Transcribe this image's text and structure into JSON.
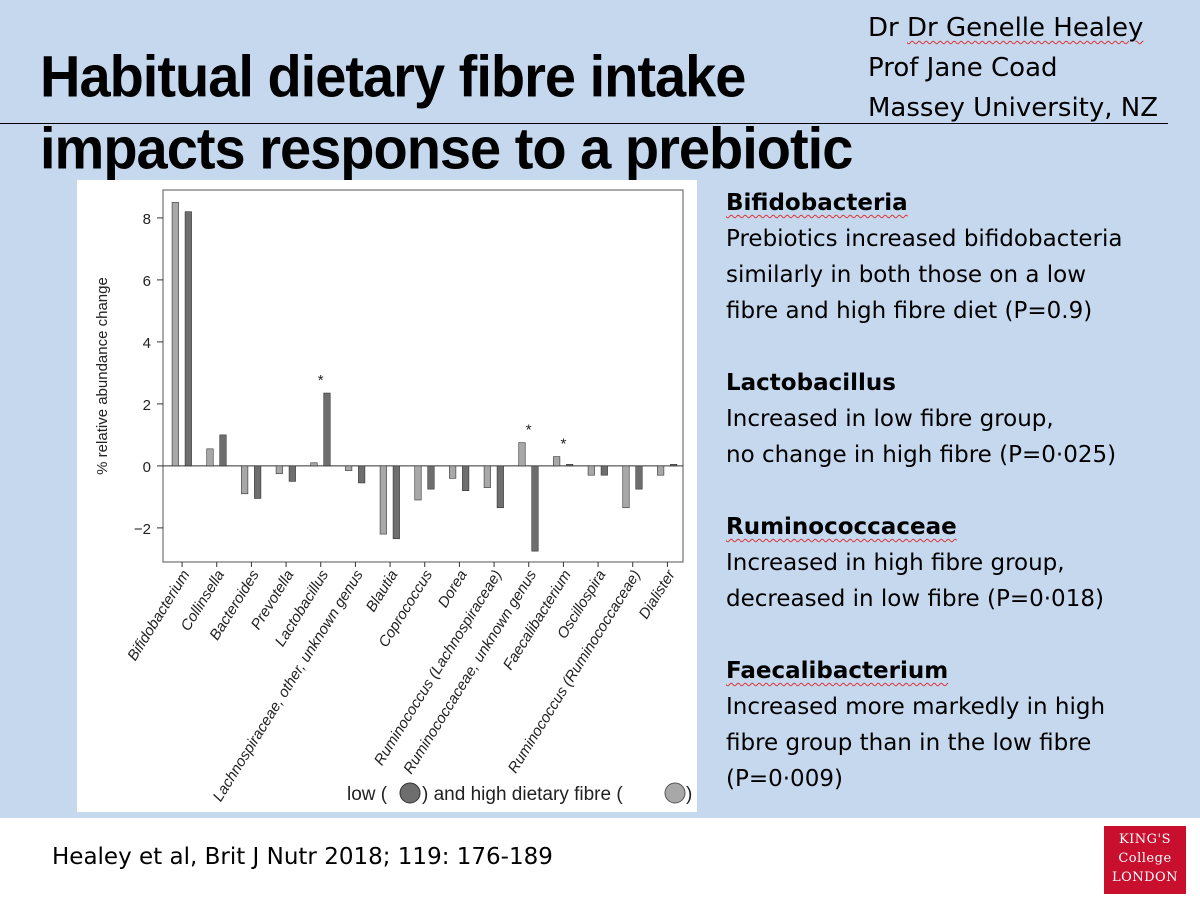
{
  "slide": {
    "title_line1": "Habitual dietary fibre intake",
    "title_line2": "impacts response to a prebiotic",
    "authors": [
      "Dr Genelle Healey",
      "Prof Jane Coad",
      "Massey University, NZ"
    ],
    "citation": "Healey et al, Brit J Nutr 2018; 119: 176-189",
    "logo_lines": [
      "KING'S",
      "College",
      "LONDON"
    ]
  },
  "notes": [
    {
      "heading": "Bifidobacteria",
      "body": "Prebiotics increased bifidobacteria\nsimilarly in both those on a low\nfibre and high fibre diet (P=0.9)"
    },
    {
      "heading": "Lactobacillus",
      "body": "Increased in low fibre group,\nno change in high fibre (P=0·025)"
    },
    {
      "heading": "Ruminococcaceae",
      "body": "Increased in high fibre group,\ndecreased in low fibre (P=0·018)"
    },
    {
      "heading": "Faecalibacterium",
      "body": "Increased more markedly in high\nfibre group than in the low fibre\n(P=0·009)"
    }
  ],
  "chart_data": {
    "type": "bar",
    "ylabel": "% relative abundance change",
    "ylim": [
      -3.1,
      8.9
    ],
    "yticks": [
      8,
      6,
      4,
      2,
      0,
      -2
    ],
    "ytick_labels": [
      "8",
      "6",
      "4",
      "2",
      "0",
      "−2"
    ],
    "legend": {
      "prefix": "low (",
      "middle": ") and high dietary fibre (",
      "suffix": ")"
    },
    "categories": [
      "Bifidobacterium",
      "Collinsella",
      "Bacteroides",
      "Prevotella",
      "Lactobacillus",
      "Lachnospiraceae, other, unknown genus",
      "Blautia",
      "Coprococcus",
      "Dorea",
      "Ruminococcus (Lachnospiraceae)",
      "Ruminococcaceae, unknown genus",
      "Faecalibacterium",
      "Oscillospira",
      "Ruminococcus (Ruminococcaceae)",
      "Dialister"
    ],
    "series": [
      {
        "name": "high dietary fibre",
        "color": "#a8a8a8",
        "values": [
          8.5,
          0.55,
          -0.9,
          -0.25,
          0.1,
          -0.15,
          -2.2,
          -1.1,
          -0.4,
          -0.7,
          0.75,
          0.3,
          -0.3,
          -1.35,
          -0.3
        ]
      },
      {
        "name": "low",
        "color": "#6e6e6e",
        "values": [
          8.2,
          1.0,
          -1.05,
          -0.5,
          2.35,
          -0.55,
          -2.35,
          -0.75,
          -0.8,
          -1.35,
          -2.75,
          0.05,
          -0.3,
          -0.75,
          0.05
        ]
      }
    ],
    "significant": [
      "Lactobacillus",
      "Ruminococcaceae, unknown genus",
      "Faecalibacterium"
    ],
    "significance_marker": "*"
  }
}
